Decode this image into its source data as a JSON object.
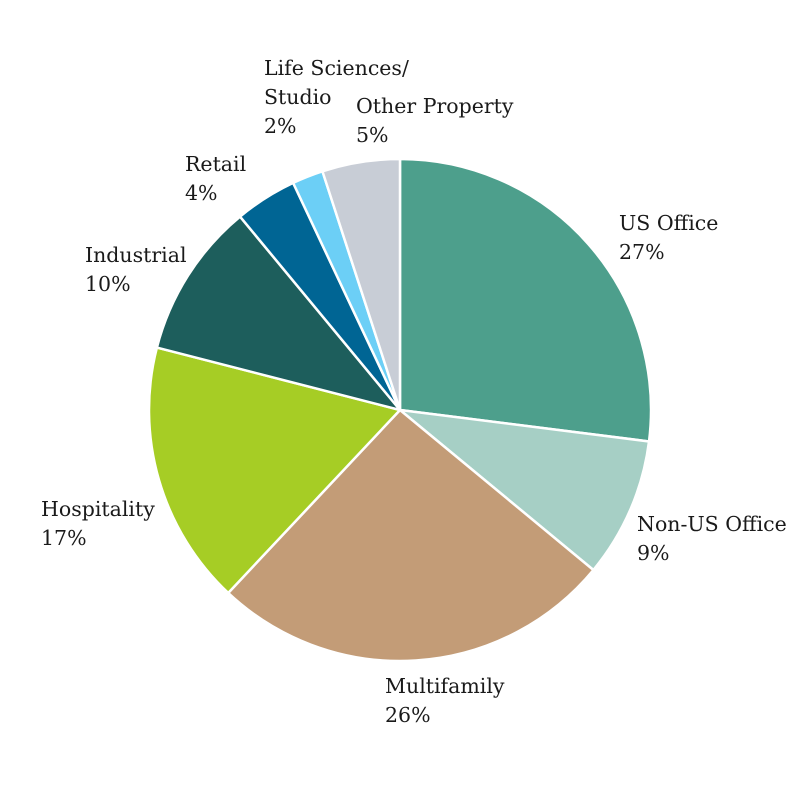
{
  "chart_data": {
    "type": "pie",
    "title": "",
    "slices": [
      {
        "label_lines": [
          "US Office"
        ],
        "value": 27,
        "display": "27%",
        "color": "#4d9f8c"
      },
      {
        "label_lines": [
          "Non-US Office"
        ],
        "value": 9,
        "display": "9%",
        "color": "#a6cfc5"
      },
      {
        "label_lines": [
          "Multifamily"
        ],
        "value": 26,
        "display": "26%",
        "color": "#c39c77"
      },
      {
        "label_lines": [
          "Hospitality"
        ],
        "value": 17,
        "display": "17%",
        "color": "#a6cd25"
      },
      {
        "label_lines": [
          "Industrial"
        ],
        "value": 10,
        "display": "10%",
        "color": "#1d5e5c"
      },
      {
        "label_lines": [
          "Retail"
        ],
        "value": 4,
        "display": "4%",
        "color": "#006594"
      },
      {
        "label_lines": [
          "Life Sciences/",
          "Studio"
        ],
        "value": 2,
        "display": "2%",
        "color": "#6ccff6"
      },
      {
        "label_lines": [
          "Other Property"
        ],
        "value": 5,
        "display": "5%",
        "color": "#c8cdd6"
      }
    ]
  }
}
